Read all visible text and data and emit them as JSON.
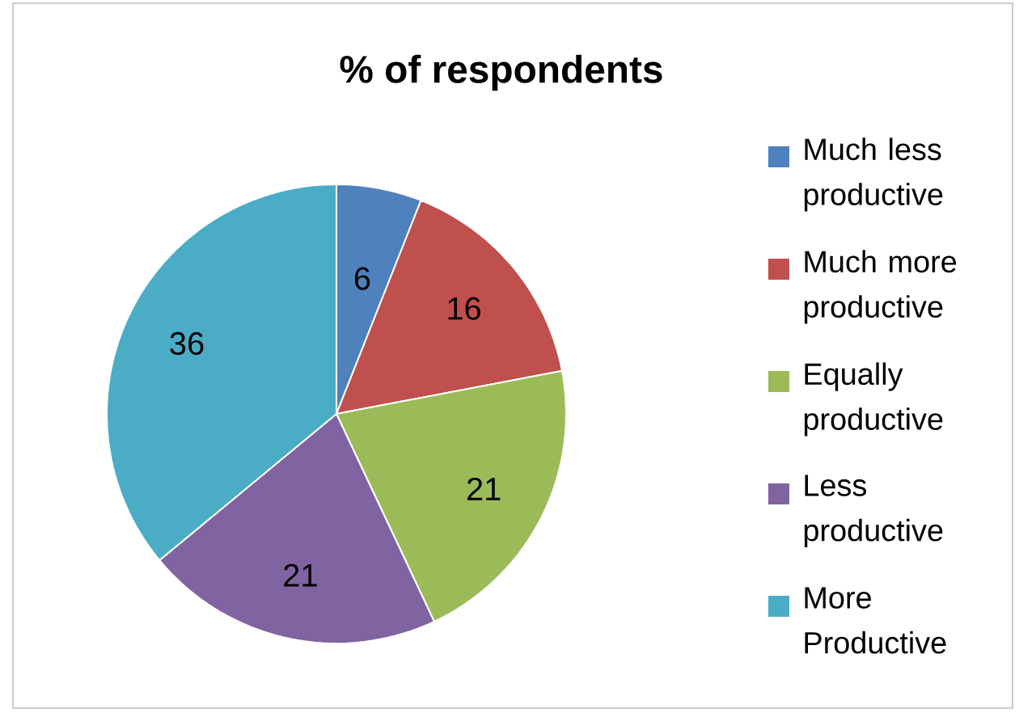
{
  "chart_data": {
    "type": "pie",
    "title": "% of respondents",
    "categories": [
      "Much less productive",
      "Much more productive",
      "Equally productive",
      "Less productive",
      "More Productive"
    ],
    "values": [
      6,
      16,
      21,
      21,
      36
    ],
    "colors": [
      "#4f81bd",
      "#c0504d",
      "#9bbb59",
      "#8064a2",
      "#4bacc6"
    ],
    "data_labels": true,
    "legend": "right"
  }
}
